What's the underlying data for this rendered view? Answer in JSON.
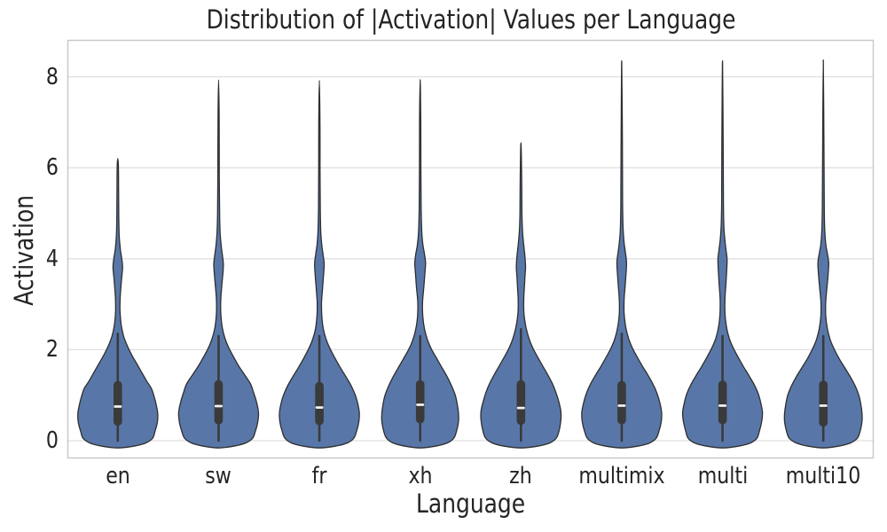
{
  "chart_data": {
    "type": "violin",
    "title": "Distribution of |Activation| Values per Language",
    "xlabel": "Language",
    "ylabel": "Activation",
    "categories": [
      "en",
      "sw",
      "fr",
      "xh",
      "zh",
      "multimix",
      "multi",
      "multi10"
    ],
    "yticks": [
      0,
      2,
      4,
      6,
      8
    ],
    "ylim": [
      -0.4,
      8.8
    ],
    "grid": true,
    "legend": null,
    "colors": {
      "violin_fill": "#5877a8",
      "violin_edge": "#2e2e2e",
      "box": "#3a3a3a",
      "median": "#f2f2f2",
      "gridline": "#e0e0e0",
      "spine": "#c9c9c9",
      "text": "#242424"
    },
    "violins": [
      {
        "label": "en",
        "stats": {
          "whisker_low": 0.0,
          "q1": 0.33,
          "median": 0.75,
          "q3": 1.31,
          "whisker_high": 2.35,
          "max": 6.2,
          "secondary_mode": 3.8
        },
        "profile": [
          [
            -0.16,
            0
          ],
          [
            -0.12,
            0.4
          ],
          [
            -0.05,
            0.7
          ],
          [
            0.05,
            0.87
          ],
          [
            0.2,
            0.93
          ],
          [
            0.4,
            0.99
          ],
          [
            0.6,
            1.0
          ],
          [
            0.8,
            0.96
          ],
          [
            1.0,
            0.9
          ],
          [
            1.15,
            0.84
          ],
          [
            1.3,
            0.73
          ],
          [
            1.5,
            0.6
          ],
          [
            1.7,
            0.47
          ],
          [
            1.9,
            0.34
          ],
          [
            2.1,
            0.23
          ],
          [
            2.3,
            0.145
          ],
          [
            2.55,
            0.085
          ],
          [
            2.85,
            0.055
          ],
          [
            3.15,
            0.06
          ],
          [
            3.45,
            0.085
          ],
          [
            3.65,
            0.105
          ],
          [
            3.82,
            0.12
          ],
          [
            4.0,
            0.1
          ],
          [
            4.2,
            0.065
          ],
          [
            4.5,
            0.035
          ],
          [
            4.9,
            0.025
          ],
          [
            5.5,
            0.02
          ],
          [
            6.0,
            0.016
          ],
          [
            6.2,
            0
          ]
        ]
      },
      {
        "label": "sw",
        "stats": {
          "whisker_low": 0.0,
          "q1": 0.36,
          "median": 0.76,
          "q3": 1.33,
          "whisker_high": 2.3,
          "max": 7.93,
          "secondary_mode": 3.88
        },
        "profile": [
          [
            -0.16,
            0
          ],
          [
            -0.12,
            0.38
          ],
          [
            -0.05,
            0.68
          ],
          [
            0.05,
            0.85
          ],
          [
            0.2,
            0.92
          ],
          [
            0.4,
            0.98
          ],
          [
            0.62,
            1.0
          ],
          [
            0.85,
            0.95
          ],
          [
            1.05,
            0.88
          ],
          [
            1.25,
            0.8
          ],
          [
            1.45,
            0.65
          ],
          [
            1.65,
            0.5
          ],
          [
            1.85,
            0.37
          ],
          [
            2.05,
            0.25
          ],
          [
            2.25,
            0.16
          ],
          [
            2.5,
            0.09
          ],
          [
            2.8,
            0.055
          ],
          [
            3.1,
            0.055
          ],
          [
            3.4,
            0.08
          ],
          [
            3.7,
            0.11
          ],
          [
            3.88,
            0.12
          ],
          [
            4.05,
            0.1
          ],
          [
            4.25,
            0.07
          ],
          [
            4.55,
            0.04
          ],
          [
            5.0,
            0.025
          ],
          [
            5.8,
            0.018
          ],
          [
            7.0,
            0.015
          ],
          [
            7.93,
            0
          ]
        ]
      },
      {
        "label": "fr",
        "stats": {
          "whisker_low": 0.0,
          "q1": 0.34,
          "median": 0.73,
          "q3": 1.29,
          "whisker_high": 2.3,
          "max": 7.92,
          "secondary_mode": 3.88
        },
        "profile": [
          [
            -0.16,
            0
          ],
          [
            -0.12,
            0.4
          ],
          [
            -0.05,
            0.7
          ],
          [
            0.05,
            0.86
          ],
          [
            0.2,
            0.93
          ],
          [
            0.42,
            0.99
          ],
          [
            0.62,
            1.0
          ],
          [
            0.82,
            0.96
          ],
          [
            1.0,
            0.9
          ],
          [
            1.2,
            0.8
          ],
          [
            1.4,
            0.67
          ],
          [
            1.6,
            0.53
          ],
          [
            1.8,
            0.4
          ],
          [
            2.0,
            0.28
          ],
          [
            2.2,
            0.18
          ],
          [
            2.45,
            0.1
          ],
          [
            2.75,
            0.06
          ],
          [
            3.05,
            0.055
          ],
          [
            3.35,
            0.08
          ],
          [
            3.65,
            0.105
          ],
          [
            3.88,
            0.12
          ],
          [
            4.08,
            0.095
          ],
          [
            4.3,
            0.06
          ],
          [
            4.6,
            0.035
          ],
          [
            5.1,
            0.022
          ],
          [
            6.0,
            0.017
          ],
          [
            7.0,
            0.015
          ],
          [
            7.92,
            0
          ]
        ]
      },
      {
        "label": "xh",
        "stats": {
          "whisker_low": 0.0,
          "q1": 0.38,
          "median": 0.79,
          "q3": 1.33,
          "whisker_high": 2.3,
          "max": 7.94,
          "secondary_mode": 3.92
        },
        "profile": [
          [
            -0.16,
            0
          ],
          [
            -0.12,
            0.38
          ],
          [
            -0.05,
            0.68
          ],
          [
            0.05,
            0.84
          ],
          [
            0.2,
            0.91
          ],
          [
            0.42,
            0.96
          ],
          [
            0.6,
            0.96
          ],
          [
            0.8,
            0.93
          ],
          [
            1.0,
            0.88
          ],
          [
            1.2,
            0.79
          ],
          [
            1.4,
            0.68
          ],
          [
            1.6,
            0.55
          ],
          [
            1.8,
            0.42
          ],
          [
            2.0,
            0.29
          ],
          [
            2.2,
            0.19
          ],
          [
            2.45,
            0.11
          ],
          [
            2.75,
            0.065
          ],
          [
            3.05,
            0.06
          ],
          [
            3.35,
            0.09
          ],
          [
            3.65,
            0.115
          ],
          [
            3.9,
            0.135
          ],
          [
            4.1,
            0.11
          ],
          [
            4.3,
            0.07
          ],
          [
            4.6,
            0.04
          ],
          [
            5.1,
            0.025
          ],
          [
            6.0,
            0.018
          ],
          [
            7.0,
            0.015
          ],
          [
            7.94,
            0
          ]
        ]
      },
      {
        "label": "zh",
        "stats": {
          "whisker_low": 0.0,
          "q1": 0.35,
          "median": 0.72,
          "q3": 1.33,
          "whisker_high": 2.45,
          "max": 6.55,
          "secondary_mode": 3.8
        },
        "profile": [
          [
            -0.16,
            0
          ],
          [
            -0.12,
            0.42
          ],
          [
            -0.05,
            0.72
          ],
          [
            0.05,
            0.88
          ],
          [
            0.2,
            0.95
          ],
          [
            0.45,
            1.0
          ],
          [
            0.65,
            1.0
          ],
          [
            0.85,
            0.95
          ],
          [
            1.05,
            0.88
          ],
          [
            1.25,
            0.79
          ],
          [
            1.45,
            0.67
          ],
          [
            1.65,
            0.54
          ],
          [
            1.85,
            0.41
          ],
          [
            2.05,
            0.29
          ],
          [
            2.25,
            0.2
          ],
          [
            2.5,
            0.125
          ],
          [
            2.8,
            0.075
          ],
          [
            3.1,
            0.07
          ],
          [
            3.35,
            0.085
          ],
          [
            3.6,
            0.1
          ],
          [
            3.82,
            0.115
          ],
          [
            4.05,
            0.1
          ],
          [
            4.3,
            0.07
          ],
          [
            4.6,
            0.04
          ],
          [
            5.0,
            0.025
          ],
          [
            5.8,
            0.018
          ],
          [
            6.55,
            0
          ]
        ]
      },
      {
        "label": "multimix",
        "stats": {
          "whisker_low": 0.0,
          "q1": 0.36,
          "median": 0.77,
          "q3": 1.31,
          "whisker_high": 2.35,
          "max": 8.35,
          "secondary_mode": 3.93
        },
        "profile": [
          [
            -0.16,
            0
          ],
          [
            -0.12,
            0.4
          ],
          [
            -0.05,
            0.7
          ],
          [
            0.05,
            0.86
          ],
          [
            0.2,
            0.93
          ],
          [
            0.42,
            0.99
          ],
          [
            0.62,
            1.0
          ],
          [
            0.85,
            0.95
          ],
          [
            1.05,
            0.88
          ],
          [
            1.25,
            0.78
          ],
          [
            1.45,
            0.65
          ],
          [
            1.65,
            0.51
          ],
          [
            1.85,
            0.38
          ],
          [
            2.05,
            0.26
          ],
          [
            2.25,
            0.17
          ],
          [
            2.5,
            0.1
          ],
          [
            2.8,
            0.06
          ],
          [
            3.1,
            0.06
          ],
          [
            3.4,
            0.085
          ],
          [
            3.7,
            0.11
          ],
          [
            3.93,
            0.12
          ],
          [
            4.12,
            0.095
          ],
          [
            4.35,
            0.06
          ],
          [
            4.65,
            0.035
          ],
          [
            5.2,
            0.022
          ],
          [
            6.5,
            0.016
          ],
          [
            8.35,
            0
          ]
        ]
      },
      {
        "label": "multi",
        "stats": {
          "whisker_low": 0.0,
          "q1": 0.36,
          "median": 0.77,
          "q3": 1.32,
          "whisker_high": 2.3,
          "max": 8.35,
          "secondary_mode": 3.98
        },
        "profile": [
          [
            -0.16,
            0
          ],
          [
            -0.12,
            0.4
          ],
          [
            -0.05,
            0.7
          ],
          [
            0.05,
            0.86
          ],
          [
            0.2,
            0.92
          ],
          [
            0.42,
            0.98
          ],
          [
            0.62,
            1.0
          ],
          [
            0.82,
            0.96
          ],
          [
            1.02,
            0.9
          ],
          [
            1.22,
            0.8
          ],
          [
            1.42,
            0.67
          ],
          [
            1.62,
            0.53
          ],
          [
            1.82,
            0.4
          ],
          [
            2.02,
            0.28
          ],
          [
            2.22,
            0.18
          ],
          [
            2.45,
            0.11
          ],
          [
            2.75,
            0.065
          ],
          [
            3.1,
            0.06
          ],
          [
            3.45,
            0.085
          ],
          [
            3.75,
            0.105
          ],
          [
            3.98,
            0.115
          ],
          [
            4.18,
            0.09
          ],
          [
            4.4,
            0.06
          ],
          [
            4.7,
            0.035
          ],
          [
            5.2,
            0.022
          ],
          [
            6.5,
            0.016
          ],
          [
            8.35,
            0
          ]
        ]
      },
      {
        "label": "multi10",
        "stats": {
          "whisker_low": 0.0,
          "q1": 0.31,
          "median": 0.77,
          "q3": 1.32,
          "whisker_high": 2.3,
          "max": 8.37,
          "secondary_mode": 3.9
        },
        "profile": [
          [
            -0.16,
            0
          ],
          [
            -0.12,
            0.38
          ],
          [
            -0.05,
            0.68
          ],
          [
            0.05,
            0.85
          ],
          [
            0.2,
            0.92
          ],
          [
            0.42,
            0.97
          ],
          [
            0.6,
            0.97
          ],
          [
            0.8,
            0.94
          ],
          [
            1.0,
            0.89
          ],
          [
            1.2,
            0.8
          ],
          [
            1.4,
            0.68
          ],
          [
            1.6,
            0.54
          ],
          [
            1.8,
            0.4
          ],
          [
            2.0,
            0.28
          ],
          [
            2.2,
            0.18
          ],
          [
            2.45,
            0.105
          ],
          [
            2.75,
            0.06
          ],
          [
            3.05,
            0.06
          ],
          [
            3.35,
            0.09
          ],
          [
            3.65,
            0.12
          ],
          [
            3.9,
            0.135
          ],
          [
            4.1,
            0.105
          ],
          [
            4.3,
            0.065
          ],
          [
            4.6,
            0.038
          ],
          [
            5.1,
            0.024
          ],
          [
            6.5,
            0.016
          ],
          [
            8.37,
            0
          ]
        ]
      }
    ]
  }
}
